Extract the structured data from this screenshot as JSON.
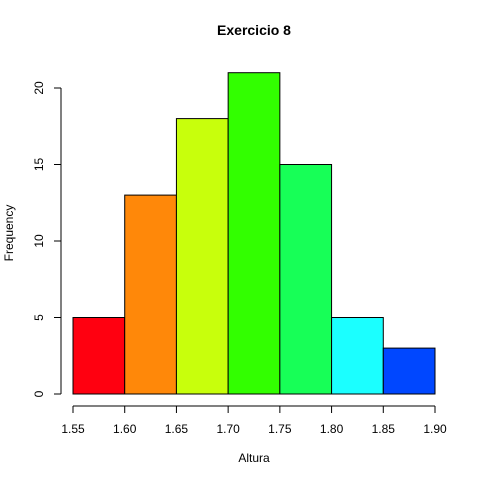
{
  "chart_data": {
    "type": "bar",
    "title": "Exercicio 8",
    "xlabel": "Altura",
    "ylabel": "Frequency",
    "bins": [
      {
        "from": 1.55,
        "to": 1.6,
        "value": 5,
        "color": "#FF0010"
      },
      {
        "from": 1.6,
        "to": 1.65,
        "value": 13,
        "color": "#FF8809"
      },
      {
        "from": 1.65,
        "to": 1.7,
        "value": 18,
        "color": "#C8FF0C"
      },
      {
        "from": 1.7,
        "to": 1.75,
        "value": 21,
        "color": "#32FF00"
      },
      {
        "from": 1.75,
        "to": 1.8,
        "value": 15,
        "color": "#17FF57"
      },
      {
        "from": 1.8,
        "to": 1.85,
        "value": 5,
        "color": "#1BFFFF"
      },
      {
        "from": 1.85,
        "to": 1.9,
        "value": 3,
        "color": "#0047FF"
      }
    ],
    "x_ticks": [
      "1.55",
      "1.60",
      "1.65",
      "1.70",
      "1.75",
      "1.80",
      "1.85",
      "1.90"
    ],
    "y_ticks": [
      "0",
      "5",
      "10",
      "15",
      "20"
    ],
    "xlim": [
      1.55,
      1.9
    ],
    "ylim": [
      0,
      20
    ],
    "grid": false,
    "legend": false
  }
}
